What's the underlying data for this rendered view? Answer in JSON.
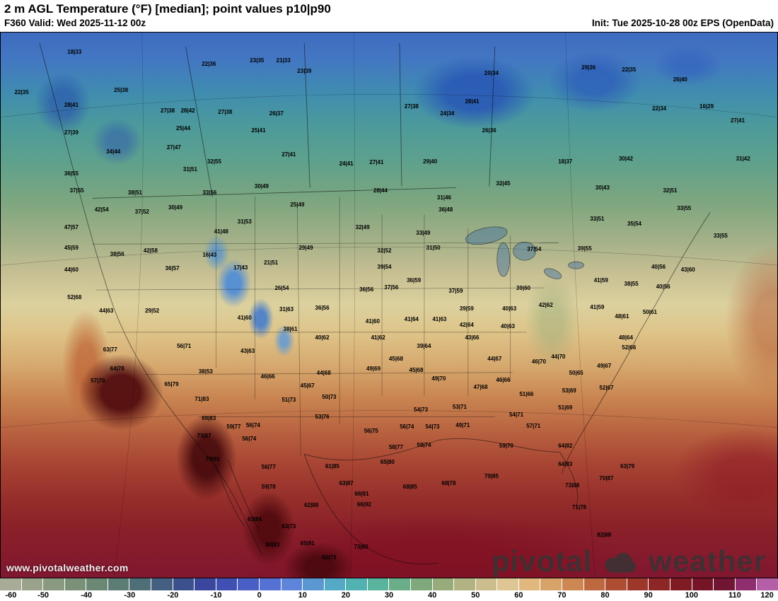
{
  "header": {
    "title": "2 m AGL Temperature (°F) [median]; point values p10|p90",
    "valid": "F360 Valid: Wed 2025-11-12 00z",
    "init": "Init: Tue 2025-10-28 00z EPS (OpenData)"
  },
  "watermark": "www.pivotalweather.com",
  "logo": {
    "first": "pivotal",
    "second": "weather"
  },
  "colorbar": {
    "min": -60,
    "max": 120,
    "ticks": [
      -60,
      -50,
      -40,
      -30,
      -20,
      -10,
      0,
      10,
      20,
      30,
      40,
      50,
      60,
      70,
      80,
      90,
      100,
      110,
      120
    ],
    "colors": [
      "#a8ab96",
      "#9aa28a",
      "#8a9a80",
      "#7a9178",
      "#6a8874",
      "#5c7d74",
      "#4e6f78",
      "#445f82",
      "#3d508e",
      "#3b479c",
      "#4050b2",
      "#4a5fc6",
      "#5671d4",
      "#5f85da",
      "#5b98d2",
      "#54a9c6",
      "#52b2b2",
      "#5ab39c",
      "#6aae89",
      "#7fa97c",
      "#98ab7a",
      "#b2b383",
      "#cbbd8e",
      "#ddc693",
      "#e0b87e",
      "#d8a369",
      "#cc8753",
      "#bd683f",
      "#ad4d32",
      "#9d372a",
      "#8d2725",
      "#7f1b22",
      "#751527",
      "#701632",
      "#8f2e6e",
      "#b55fa8"
    ]
  },
  "map": {
    "points": [
      {
        "x": 9.5,
        "y": 3.6,
        "v": "18|33"
      },
      {
        "x": 26.8,
        "y": 5.8,
        "v": "22|36"
      },
      {
        "x": 33.0,
        "y": 5.2,
        "v": "23|35"
      },
      {
        "x": 36.4,
        "y": 5.2,
        "v": "21|33"
      },
      {
        "x": 39.1,
        "y": 7.1,
        "v": "23|39"
      },
      {
        "x": 63.2,
        "y": 7.5,
        "v": "20|34"
      },
      {
        "x": 75.7,
        "y": 6.5,
        "v": "29|36"
      },
      {
        "x": 80.9,
        "y": 6.9,
        "v": "22|35"
      },
      {
        "x": 2.7,
        "y": 11.0,
        "v": "22|35"
      },
      {
        "x": 15.5,
        "y": 10.6,
        "v": "25|38"
      },
      {
        "x": 87.5,
        "y": 8.7,
        "v": "26|40"
      },
      {
        "x": 9.1,
        "y": 13.3,
        "v": "28|41"
      },
      {
        "x": 21.5,
        "y": 14.4,
        "v": "27|38"
      },
      {
        "x": 24.1,
        "y": 14.4,
        "v": "28|42"
      },
      {
        "x": 28.9,
        "y": 14.7,
        "v": "27|38"
      },
      {
        "x": 35.5,
        "y": 14.9,
        "v": "26|37"
      },
      {
        "x": 52.9,
        "y": 13.6,
        "v": "27|38"
      },
      {
        "x": 57.5,
        "y": 14.9,
        "v": "24|34"
      },
      {
        "x": 60.7,
        "y": 12.7,
        "v": "28|41"
      },
      {
        "x": 84.8,
        "y": 14.0,
        "v": "22|34"
      },
      {
        "x": 90.9,
        "y": 13.6,
        "v": "16|29"
      },
      {
        "x": 9.1,
        "y": 18.4,
        "v": "27|39"
      },
      {
        "x": 23.5,
        "y": 17.7,
        "v": "25|44"
      },
      {
        "x": 33.2,
        "y": 18.0,
        "v": "25|41"
      },
      {
        "x": 62.9,
        "y": 18.0,
        "v": "26|36"
      },
      {
        "x": 94.9,
        "y": 16.2,
        "v": "27|41"
      },
      {
        "x": 14.5,
        "y": 21.9,
        "v": "34|44"
      },
      {
        "x": 22.3,
        "y": 21.2,
        "v": "27|47"
      },
      {
        "x": 27.5,
        "y": 23.7,
        "v": "32|55"
      },
      {
        "x": 24.4,
        "y": 25.2,
        "v": "31|51"
      },
      {
        "x": 37.1,
        "y": 22.4,
        "v": "27|41"
      },
      {
        "x": 44.5,
        "y": 24.1,
        "v": "24|41"
      },
      {
        "x": 48.4,
        "y": 23.9,
        "v": "27|41"
      },
      {
        "x": 55.3,
        "y": 23.7,
        "v": "29|40"
      },
      {
        "x": 72.7,
        "y": 23.7,
        "v": "18|37"
      },
      {
        "x": 80.5,
        "y": 23.2,
        "v": "30|42"
      },
      {
        "x": 95.6,
        "y": 23.2,
        "v": "31|42"
      },
      {
        "x": 9.1,
        "y": 26.0,
        "v": "36|55"
      },
      {
        "x": 9.8,
        "y": 29.1,
        "v": "37|55"
      },
      {
        "x": 17.3,
        "y": 29.4,
        "v": "38|51"
      },
      {
        "x": 26.9,
        "y": 29.4,
        "v": "33|56"
      },
      {
        "x": 33.6,
        "y": 28.3,
        "v": "30|49"
      },
      {
        "x": 38.2,
        "y": 31.7,
        "v": "25|49"
      },
      {
        "x": 48.9,
        "y": 29.0,
        "v": "28|44"
      },
      {
        "x": 57.1,
        "y": 30.4,
        "v": "31|46"
      },
      {
        "x": 57.3,
        "y": 32.5,
        "v": "36|48"
      },
      {
        "x": 64.7,
        "y": 27.8,
        "v": "32|45"
      },
      {
        "x": 77.5,
        "y": 28.5,
        "v": "30|43"
      },
      {
        "x": 86.2,
        "y": 29.1,
        "v": "32|51"
      },
      {
        "x": 88.0,
        "y": 32.3,
        "v": "33|55"
      },
      {
        "x": 13.0,
        "y": 32.5,
        "v": "42|54"
      },
      {
        "x": 18.2,
        "y": 32.9,
        "v": "37|52"
      },
      {
        "x": 22.5,
        "y": 32.2,
        "v": "30|49"
      },
      {
        "x": 31.4,
        "y": 34.7,
        "v": "31|53"
      },
      {
        "x": 46.6,
        "y": 35.8,
        "v": "32|49"
      },
      {
        "x": 54.4,
        "y": 36.9,
        "v": "33|49"
      },
      {
        "x": 9.1,
        "y": 35.8,
        "v": "47|57"
      },
      {
        "x": 28.4,
        "y": 36.6,
        "v": "41|48"
      },
      {
        "x": 76.8,
        "y": 34.3,
        "v": "33|51"
      },
      {
        "x": 81.6,
        "y": 35.1,
        "v": "35|54"
      },
      {
        "x": 92.7,
        "y": 37.3,
        "v": "33|55"
      },
      {
        "x": 75.2,
        "y": 39.7,
        "v": "39|55"
      },
      {
        "x": 84.7,
        "y": 43.1,
        "v": "40|56"
      },
      {
        "x": 88.5,
        "y": 43.6,
        "v": "43|60"
      },
      {
        "x": 81.2,
        "y": 46.2,
        "v": "38|55"
      },
      {
        "x": 77.3,
        "y": 45.5,
        "v": "41|59"
      },
      {
        "x": 85.3,
        "y": 46.7,
        "v": "40|56"
      },
      {
        "x": 9.1,
        "y": 39.5,
        "v": "45|59"
      },
      {
        "x": 15.0,
        "y": 40.7,
        "v": "38|56"
      },
      {
        "x": 19.3,
        "y": 40.1,
        "v": "42|58"
      },
      {
        "x": 26.9,
        "y": 40.9,
        "v": "16|43"
      },
      {
        "x": 30.9,
        "y": 43.2,
        "v": "17|43"
      },
      {
        "x": 34.8,
        "y": 42.3,
        "v": "21|51"
      },
      {
        "x": 39.3,
        "y": 39.5,
        "v": "29|49"
      },
      {
        "x": 49.4,
        "y": 40.1,
        "v": "32|52"
      },
      {
        "x": 55.7,
        "y": 39.5,
        "v": "31|50"
      },
      {
        "x": 49.4,
        "y": 43.1,
        "v": "39|54"
      },
      {
        "x": 68.7,
        "y": 39.8,
        "v": "37|54"
      },
      {
        "x": 9.1,
        "y": 43.6,
        "v": "44|60"
      },
      {
        "x": 22.1,
        "y": 43.3,
        "v": "36|57"
      },
      {
        "x": 36.2,
        "y": 47.0,
        "v": "26|54"
      },
      {
        "x": 47.1,
        "y": 47.2,
        "v": "36|56"
      },
      {
        "x": 50.3,
        "y": 46.8,
        "v": "37|56"
      },
      {
        "x": 53.2,
        "y": 45.5,
        "v": "36|59"
      },
      {
        "x": 58.6,
        "y": 47.5,
        "v": "37|59"
      },
      {
        "x": 67.3,
        "y": 47.0,
        "v": "39|60"
      },
      {
        "x": 60.0,
        "y": 50.7,
        "v": "39|59"
      },
      {
        "x": 9.5,
        "y": 48.6,
        "v": "52|68"
      },
      {
        "x": 13.6,
        "y": 51.1,
        "v": "44|63"
      },
      {
        "x": 19.5,
        "y": 51.1,
        "v": "29|52"
      },
      {
        "x": 31.4,
        "y": 52.4,
        "v": "41|60"
      },
      {
        "x": 36.8,
        "y": 50.8,
        "v": "31|63"
      },
      {
        "x": 41.4,
        "y": 50.6,
        "v": "36|56"
      },
      {
        "x": 37.3,
        "y": 54.5,
        "v": "38|61"
      },
      {
        "x": 47.9,
        "y": 53.0,
        "v": "41|60"
      },
      {
        "x": 52.9,
        "y": 52.7,
        "v": "41|64"
      },
      {
        "x": 56.5,
        "y": 52.7,
        "v": "41|63"
      },
      {
        "x": 60.0,
        "y": 53.7,
        "v": "42|64"
      },
      {
        "x": 65.5,
        "y": 50.7,
        "v": "40|63"
      },
      {
        "x": 70.2,
        "y": 50.1,
        "v": "42|62"
      },
      {
        "x": 76.8,
        "y": 50.5,
        "v": "41|59"
      },
      {
        "x": 80.0,
        "y": 52.1,
        "v": "48|61"
      },
      {
        "x": 83.6,
        "y": 51.4,
        "v": "50|61"
      },
      {
        "x": 41.4,
        "y": 56.0,
        "v": "40|62"
      },
      {
        "x": 48.6,
        "y": 56.0,
        "v": "41|62"
      },
      {
        "x": 65.3,
        "y": 54.0,
        "v": "40|63"
      },
      {
        "x": 60.7,
        "y": 56.0,
        "v": "43|66"
      },
      {
        "x": 54.5,
        "y": 57.6,
        "v": "39|64"
      },
      {
        "x": 80.5,
        "y": 56.0,
        "v": "48|64"
      },
      {
        "x": 80.9,
        "y": 57.8,
        "v": "52|66"
      },
      {
        "x": 14.1,
        "y": 58.3,
        "v": "63|77"
      },
      {
        "x": 23.6,
        "y": 57.6,
        "v": "56|71"
      },
      {
        "x": 31.8,
        "y": 58.5,
        "v": "43|63"
      },
      {
        "x": 15.0,
        "y": 61.8,
        "v": "64|78"
      },
      {
        "x": 12.5,
        "y": 64.0,
        "v": "57|70"
      },
      {
        "x": 26.4,
        "y": 62.2,
        "v": "38|53"
      },
      {
        "x": 34.4,
        "y": 63.1,
        "v": "46|66"
      },
      {
        "x": 41.6,
        "y": 62.5,
        "v": "44|68"
      },
      {
        "x": 48.0,
        "y": 61.7,
        "v": "49|69"
      },
      {
        "x": 50.9,
        "y": 59.9,
        "v": "45|68"
      },
      {
        "x": 53.5,
        "y": 62.0,
        "v": "45|68"
      },
      {
        "x": 56.4,
        "y": 63.5,
        "v": "49|70"
      },
      {
        "x": 71.8,
        "y": 59.5,
        "v": "44|70"
      },
      {
        "x": 69.3,
        "y": 60.4,
        "v": "46|70"
      },
      {
        "x": 63.6,
        "y": 59.9,
        "v": "44|67"
      },
      {
        "x": 64.7,
        "y": 63.8,
        "v": "46|66"
      },
      {
        "x": 77.7,
        "y": 61.2,
        "v": "49|67"
      },
      {
        "x": 74.1,
        "y": 62.5,
        "v": "50|65"
      },
      {
        "x": 61.8,
        "y": 65.1,
        "v": "47|68"
      },
      {
        "x": 39.5,
        "y": 64.8,
        "v": "45|67"
      },
      {
        "x": 22.0,
        "y": 64.6,
        "v": "65|79"
      },
      {
        "x": 25.9,
        "y": 67.3,
        "v": "71|83"
      },
      {
        "x": 37.1,
        "y": 67.4,
        "v": "51|73"
      },
      {
        "x": 42.3,
        "y": 66.9,
        "v": "50|73"
      },
      {
        "x": 73.2,
        "y": 65.7,
        "v": "53|69"
      },
      {
        "x": 78.0,
        "y": 65.3,
        "v": "52|67"
      },
      {
        "x": 67.7,
        "y": 66.4,
        "v": "51|66"
      },
      {
        "x": 26.8,
        "y": 70.8,
        "v": "69|83"
      },
      {
        "x": 30.0,
        "y": 72.4,
        "v": "59|77"
      },
      {
        "x": 32.5,
        "y": 72.1,
        "v": "56|74"
      },
      {
        "x": 41.4,
        "y": 70.5,
        "v": "53|76"
      },
      {
        "x": 54.1,
        "y": 69.2,
        "v": "54|73"
      },
      {
        "x": 59.1,
        "y": 68.8,
        "v": "53|71"
      },
      {
        "x": 66.4,
        "y": 70.2,
        "v": "54|71"
      },
      {
        "x": 72.7,
        "y": 68.9,
        "v": "51|69"
      },
      {
        "x": 32.0,
        "y": 74.6,
        "v": "56|74"
      },
      {
        "x": 26.2,
        "y": 74.1,
        "v": "73|87"
      },
      {
        "x": 47.7,
        "y": 73.1,
        "v": "56|75"
      },
      {
        "x": 52.3,
        "y": 72.4,
        "v": "56|74"
      },
      {
        "x": 55.6,
        "y": 72.4,
        "v": "54|73"
      },
      {
        "x": 59.5,
        "y": 72.1,
        "v": "49|71"
      },
      {
        "x": 68.6,
        "y": 72.2,
        "v": "57|71"
      },
      {
        "x": 27.3,
        "y": 78.3,
        "v": "79|91"
      },
      {
        "x": 50.9,
        "y": 76.1,
        "v": "58|77"
      },
      {
        "x": 54.5,
        "y": 75.7,
        "v": "59|74"
      },
      {
        "x": 65.1,
        "y": 75.9,
        "v": "59|70"
      },
      {
        "x": 72.7,
        "y": 75.9,
        "v": "64|82"
      },
      {
        "x": 34.5,
        "y": 79.8,
        "v": "56|77"
      },
      {
        "x": 42.7,
        "y": 79.6,
        "v": "61|85"
      },
      {
        "x": 49.8,
        "y": 78.9,
        "v": "65|80"
      },
      {
        "x": 63.2,
        "y": 81.5,
        "v": "70|85"
      },
      {
        "x": 72.7,
        "y": 79.3,
        "v": "64|83"
      },
      {
        "x": 80.7,
        "y": 79.6,
        "v": "63|79"
      },
      {
        "x": 34.5,
        "y": 83.4,
        "v": "59|78"
      },
      {
        "x": 44.5,
        "y": 82.8,
        "v": "63|87"
      },
      {
        "x": 46.5,
        "y": 84.7,
        "v": "66|91"
      },
      {
        "x": 52.7,
        "y": 83.4,
        "v": "68|85"
      },
      {
        "x": 57.7,
        "y": 82.8,
        "v": "68|78"
      },
      {
        "x": 73.6,
        "y": 83.2,
        "v": "73|88"
      },
      {
        "x": 78.0,
        "y": 81.9,
        "v": "70|87"
      },
      {
        "x": 46.8,
        "y": 86.7,
        "v": "66|92"
      },
      {
        "x": 40.0,
        "y": 86.8,
        "v": "62|88"
      },
      {
        "x": 74.5,
        "y": 87.1,
        "v": "71|78"
      },
      {
        "x": 37.1,
        "y": 90.6,
        "v": "63|73"
      },
      {
        "x": 39.5,
        "y": 93.8,
        "v": "65|91"
      },
      {
        "x": 35.0,
        "y": 94.0,
        "v": "80|83"
      },
      {
        "x": 42.3,
        "y": 96.4,
        "v": "60|73"
      },
      {
        "x": 46.4,
        "y": 94.4,
        "v": "73|85"
      },
      {
        "x": 32.7,
        "y": 89.3,
        "v": "63|84"
      },
      {
        "x": 77.7,
        "y": 92.2,
        "v": "82|88"
      }
    ]
  }
}
